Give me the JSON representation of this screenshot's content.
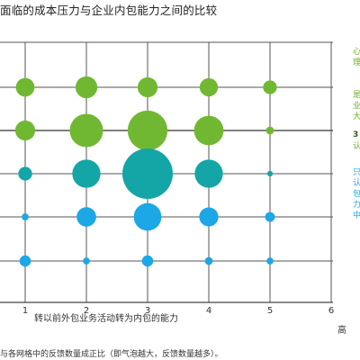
{
  "title": "面临的成本压力与企业内包能力之间的比较",
  "chart_data": {
    "type": "scatter",
    "title": "面临的成本压力与企业内包能力之间的比较",
    "xlabel": "转以前外包业务活动转为内包的能力",
    "xlabel_end": "高",
    "xlim": [
      0,
      6
    ],
    "x_ticks": [
      "1",
      "2",
      "3",
      "4",
      "5",
      "6"
    ],
    "grid": true,
    "bubble_size_note": "气泡大小与各网格中的反馈数量成正比",
    "rows": [
      {
        "id": "row-1",
        "color": "#71b832",
        "points": [
          {
            "x": 1,
            "size": 2.2
          },
          {
            "x": 2,
            "size": 3
          },
          {
            "x": 3,
            "size": 2.5
          },
          {
            "x": 4,
            "size": 2.1
          },
          {
            "x": 5,
            "size": 1.2
          }
        ]
      },
      {
        "id": "row-2",
        "color": "#71b832",
        "points": [
          {
            "x": 1,
            "size": 2.5
          },
          {
            "x": 2,
            "size": 7
          },
          {
            "x": 3,
            "size": 10
          },
          {
            "x": 4,
            "size": 5.5
          },
          {
            "x": 5,
            "size": 0.4
          }
        ]
      },
      {
        "id": "row-3",
        "color": "#14a5a6",
        "points": [
          {
            "x": 1,
            "size": 1.2
          },
          {
            "x": 2,
            "size": 5
          },
          {
            "x": 3,
            "size": 16
          },
          {
            "x": 4,
            "size": 5
          },
          {
            "x": 5,
            "size": 0.2
          }
        ]
      },
      {
        "id": "row-4",
        "color": "#1ca7e6",
        "points": [
          {
            "x": 1,
            "size": 0.3
          },
          {
            "x": 2,
            "size": 2.4
          },
          {
            "x": 3,
            "size": 4.8
          },
          {
            "x": 4,
            "size": 2.3
          },
          {
            "x": 5,
            "size": 0.6
          }
        ]
      },
      {
        "id": "row-5",
        "color": "#1ca7e6",
        "points": [
          {
            "x": 1,
            "size": 0.8
          },
          {
            "x": 2,
            "size": 0.3
          },
          {
            "x": 3,
            "size": 0.8
          },
          {
            "x": 4,
            "size": 0.4
          },
          {
            "x": 5,
            "size": 0.3
          }
        ]
      }
    ]
  },
  "legend": {
    "green_1": "心理",
    "green_2": "是业大",
    "dark": "3",
    "dark_2": "认",
    "blue": "只认包力中"
  },
  "footnote": "与各网格中的反馈数量成正比（即气泡越大，反馈数量越多）。"
}
